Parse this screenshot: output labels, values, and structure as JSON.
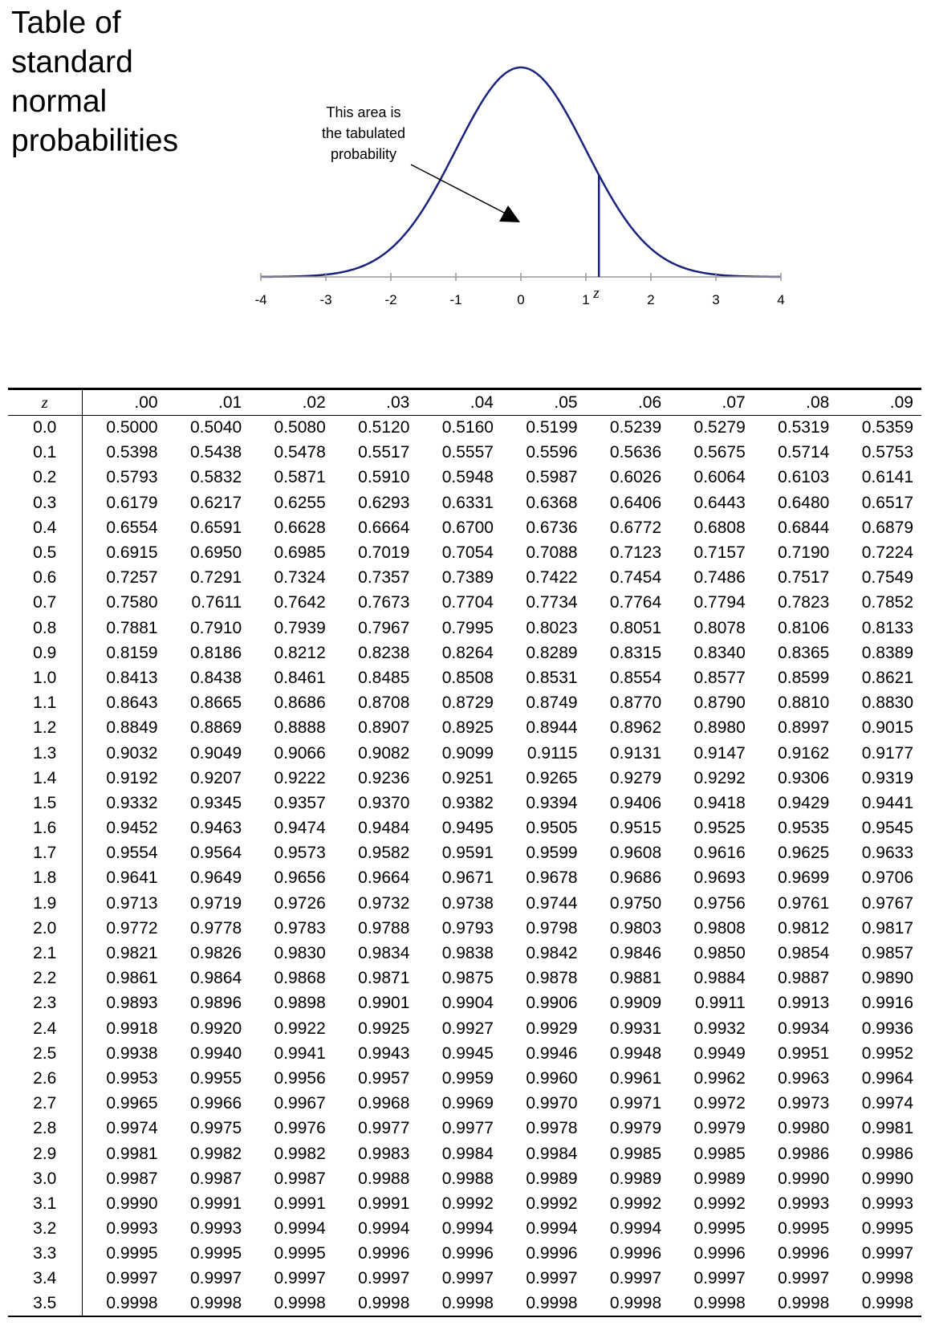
{
  "title_lines": [
    "Table of",
    "standard",
    "normal",
    "probabilities"
  ],
  "annotation_lines": [
    "This area is",
    "the tabulated",
    "probability"
  ],
  "axis": {
    "tick_labels": [
      "-4",
      "-3",
      "-2",
      "-1",
      "0",
      "1",
      "2",
      "3",
      "4"
    ],
    "z_marker_label": "z",
    "z_marker_value": 1.2
  },
  "colors": {
    "curve": "#1a237e",
    "text": "#000000"
  },
  "table": {
    "z_header": "z",
    "columns": [
      ".00",
      ".01",
      ".02",
      ".03",
      ".04",
      ".05",
      ".06",
      ".07",
      ".08",
      ".09"
    ],
    "rows": [
      {
        "z": "0.0",
        "values": [
          "0.5000",
          "0.5040",
          "0.5080",
          "0.5120",
          "0.5160",
          "0.5199",
          "0.5239",
          "0.5279",
          "0.5319",
          "0.5359"
        ]
      },
      {
        "z": "0.1",
        "values": [
          "0.5398",
          "0.5438",
          "0.5478",
          "0.5517",
          "0.5557",
          "0.5596",
          "0.5636",
          "0.5675",
          "0.5714",
          "0.5753"
        ]
      },
      {
        "z": "0.2",
        "values": [
          "0.5793",
          "0.5832",
          "0.5871",
          "0.5910",
          "0.5948",
          "0.5987",
          "0.6026",
          "0.6064",
          "0.6103",
          "0.6141"
        ]
      },
      {
        "z": "0.3",
        "values": [
          "0.6179",
          "0.6217",
          "0.6255",
          "0.6293",
          "0.6331",
          "0.6368",
          "0.6406",
          "0.6443",
          "0.6480",
          "0.6517"
        ]
      },
      {
        "z": "0.4",
        "values": [
          "0.6554",
          "0.6591",
          "0.6628",
          "0.6664",
          "0.6700",
          "0.6736",
          "0.6772",
          "0.6808",
          "0.6844",
          "0.6879"
        ]
      },
      {
        "z": "0.5",
        "values": [
          "0.6915",
          "0.6950",
          "0.6985",
          "0.7019",
          "0.7054",
          "0.7088",
          "0.7123",
          "0.7157",
          "0.7190",
          "0.7224"
        ]
      },
      {
        "z": "0.6",
        "values": [
          "0.7257",
          "0.7291",
          "0.7324",
          "0.7357",
          "0.7389",
          "0.7422",
          "0.7454",
          "0.7486",
          "0.7517",
          "0.7549"
        ]
      },
      {
        "z": "0.7",
        "values": [
          "0.7580",
          "0.7611",
          "0.7642",
          "0.7673",
          "0.7704",
          "0.7734",
          "0.7764",
          "0.7794",
          "0.7823",
          "0.7852"
        ]
      },
      {
        "z": "0.8",
        "values": [
          "0.7881",
          "0.7910",
          "0.7939",
          "0.7967",
          "0.7995",
          "0.8023",
          "0.8051",
          "0.8078",
          "0.8106",
          "0.8133"
        ]
      },
      {
        "z": "0.9",
        "values": [
          "0.8159",
          "0.8186",
          "0.8212",
          "0.8238",
          "0.8264",
          "0.8289",
          "0.8315",
          "0.8340",
          "0.8365",
          "0.8389"
        ]
      },
      {
        "z": "1.0",
        "values": [
          "0.8413",
          "0.8438",
          "0.8461",
          "0.8485",
          "0.8508",
          "0.8531",
          "0.8554",
          "0.8577",
          "0.8599",
          "0.8621"
        ]
      },
      {
        "z": "1.1",
        "values": [
          "0.8643",
          "0.8665",
          "0.8686",
          "0.8708",
          "0.8729",
          "0.8749",
          "0.8770",
          "0.8790",
          "0.8810",
          "0.8830"
        ]
      },
      {
        "z": "1.2",
        "values": [
          "0.8849",
          "0.8869",
          "0.8888",
          "0.8907",
          "0.8925",
          "0.8944",
          "0.8962",
          "0.8980",
          "0.8997",
          "0.9015"
        ]
      },
      {
        "z": "1.3",
        "values": [
          "0.9032",
          "0.9049",
          "0.9066",
          "0.9082",
          "0.9099",
          "0.9115",
          "0.9131",
          "0.9147",
          "0.9162",
          "0.9177"
        ]
      },
      {
        "z": "1.4",
        "values": [
          "0.9192",
          "0.9207",
          "0.9222",
          "0.9236",
          "0.9251",
          "0.9265",
          "0.9279",
          "0.9292",
          "0.9306",
          "0.9319"
        ]
      },
      {
        "z": "1.5",
        "values": [
          "0.9332",
          "0.9345",
          "0.9357",
          "0.9370",
          "0.9382",
          "0.9394",
          "0.9406",
          "0.9418",
          "0.9429",
          "0.9441"
        ]
      },
      {
        "z": "1.6",
        "values": [
          "0.9452",
          "0.9463",
          "0.9474",
          "0.9484",
          "0.9495",
          "0.9505",
          "0.9515",
          "0.9525",
          "0.9535",
          "0.9545"
        ]
      },
      {
        "z": "1.7",
        "values": [
          "0.9554",
          "0.9564",
          "0.9573",
          "0.9582",
          "0.9591",
          "0.9599",
          "0.9608",
          "0.9616",
          "0.9625",
          "0.9633"
        ]
      },
      {
        "z": "1.8",
        "values": [
          "0.9641",
          "0.9649",
          "0.9656",
          "0.9664",
          "0.9671",
          "0.9678",
          "0.9686",
          "0.9693",
          "0.9699",
          "0.9706"
        ]
      },
      {
        "z": "1.9",
        "values": [
          "0.9713",
          "0.9719",
          "0.9726",
          "0.9732",
          "0.9738",
          "0.9744",
          "0.9750",
          "0.9756",
          "0.9761",
          "0.9767"
        ]
      },
      {
        "z": "2.0",
        "values": [
          "0.9772",
          "0.9778",
          "0.9783",
          "0.9788",
          "0.9793",
          "0.9798",
          "0.9803",
          "0.9808",
          "0.9812",
          "0.9817"
        ]
      },
      {
        "z": "2.1",
        "values": [
          "0.9821",
          "0.9826",
          "0.9830",
          "0.9834",
          "0.9838",
          "0.9842",
          "0.9846",
          "0.9850",
          "0.9854",
          "0.9857"
        ]
      },
      {
        "z": "2.2",
        "values": [
          "0.9861",
          "0.9864",
          "0.9868",
          "0.9871",
          "0.9875",
          "0.9878",
          "0.9881",
          "0.9884",
          "0.9887",
          "0.9890"
        ]
      },
      {
        "z": "2.3",
        "values": [
          "0.9893",
          "0.9896",
          "0.9898",
          "0.9901",
          "0.9904",
          "0.9906",
          "0.9909",
          "0.9911",
          "0.9913",
          "0.9916"
        ]
      },
      {
        "z": "2.4",
        "values": [
          "0.9918",
          "0.9920",
          "0.9922",
          "0.9925",
          "0.9927",
          "0.9929",
          "0.9931",
          "0.9932",
          "0.9934",
          "0.9936"
        ]
      },
      {
        "z": "2.5",
        "values": [
          "0.9938",
          "0.9940",
          "0.9941",
          "0.9943",
          "0.9945",
          "0.9946",
          "0.9948",
          "0.9949",
          "0.9951",
          "0.9952"
        ]
      },
      {
        "z": "2.6",
        "values": [
          "0.9953",
          "0.9955",
          "0.9956",
          "0.9957",
          "0.9959",
          "0.9960",
          "0.9961",
          "0.9962",
          "0.9963",
          "0.9964"
        ]
      },
      {
        "z": "2.7",
        "values": [
          "0.9965",
          "0.9966",
          "0.9967",
          "0.9968",
          "0.9969",
          "0.9970",
          "0.9971",
          "0.9972",
          "0.9973",
          "0.9974"
        ]
      },
      {
        "z": "2.8",
        "values": [
          "0.9974",
          "0.9975",
          "0.9976",
          "0.9977",
          "0.9977",
          "0.9978",
          "0.9979",
          "0.9979",
          "0.9980",
          "0.9981"
        ]
      },
      {
        "z": "2.9",
        "values": [
          "0.9981",
          "0.9982",
          "0.9982",
          "0.9983",
          "0.9984",
          "0.9984",
          "0.9985",
          "0.9985",
          "0.9986",
          "0.9986"
        ]
      },
      {
        "z": "3.0",
        "values": [
          "0.9987",
          "0.9987",
          "0.9987",
          "0.9988",
          "0.9988",
          "0.9989",
          "0.9989",
          "0.9989",
          "0.9990",
          "0.9990"
        ]
      },
      {
        "z": "3.1",
        "values": [
          "0.9990",
          "0.9991",
          "0.9991",
          "0.9991",
          "0.9992",
          "0.9992",
          "0.9992",
          "0.9992",
          "0.9993",
          "0.9993"
        ]
      },
      {
        "z": "3.2",
        "values": [
          "0.9993",
          "0.9993",
          "0.9994",
          "0.9994",
          "0.9994",
          "0.9994",
          "0.9994",
          "0.9995",
          "0.9995",
          "0.9995"
        ]
      },
      {
        "z": "3.3",
        "values": [
          "0.9995",
          "0.9995",
          "0.9995",
          "0.9996",
          "0.9996",
          "0.9996",
          "0.9996",
          "0.9996",
          "0.9996",
          "0.9997"
        ]
      },
      {
        "z": "3.4",
        "values": [
          "0.9997",
          "0.9997",
          "0.9997",
          "0.9997",
          "0.9997",
          "0.9997",
          "0.9997",
          "0.9997",
          "0.9997",
          "0.9998"
        ]
      },
      {
        "z": "3.5",
        "values": [
          "0.9998",
          "0.9998",
          "0.9998",
          "0.9998",
          "0.9998",
          "0.9998",
          "0.9998",
          "0.9998",
          "0.9998",
          "0.9998"
        ]
      }
    ]
  }
}
